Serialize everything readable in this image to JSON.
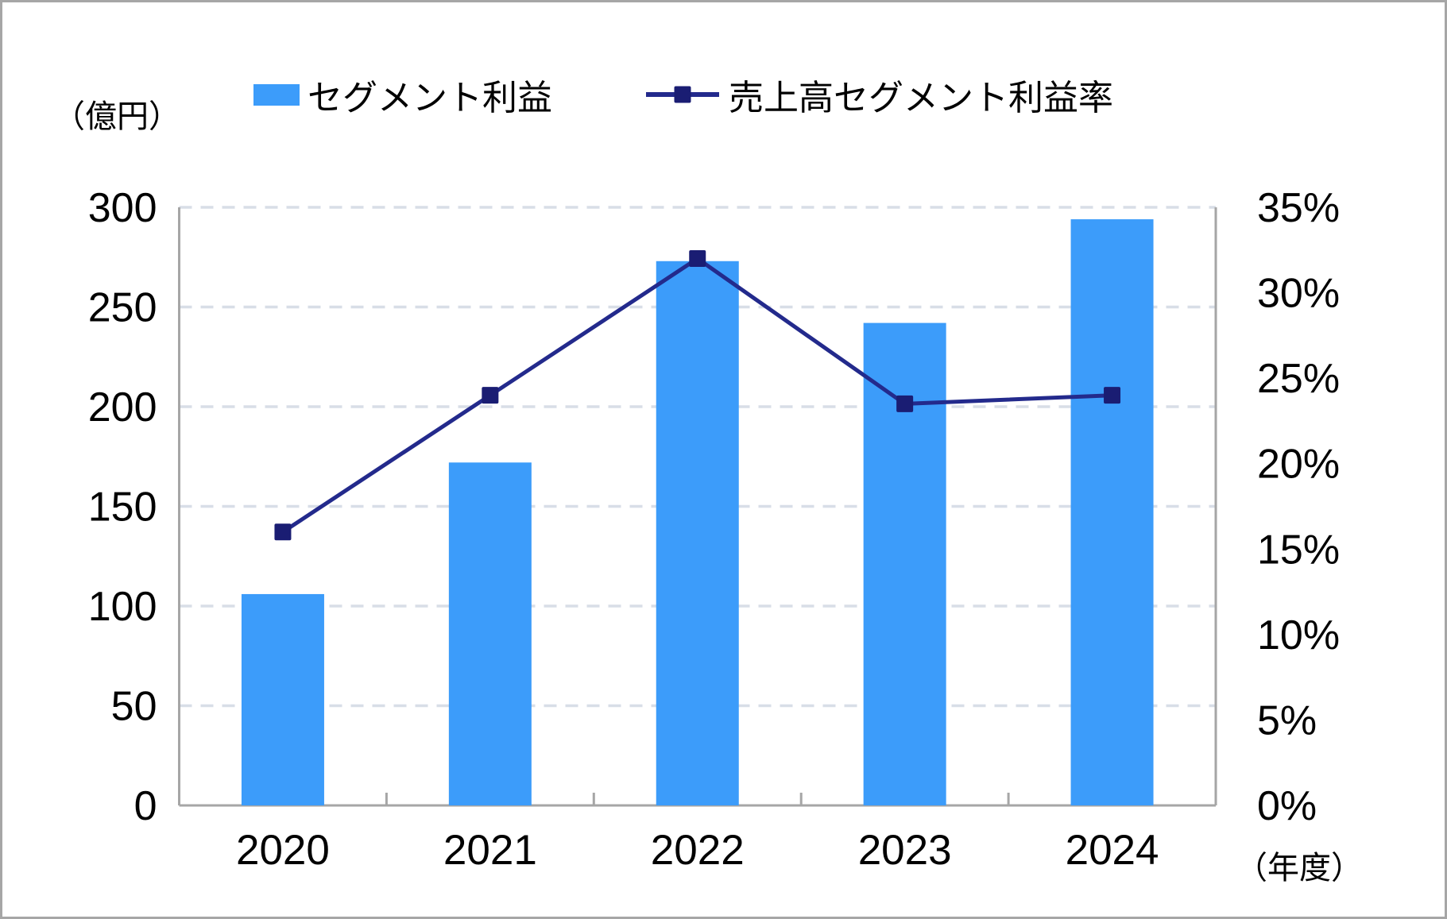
{
  "legend": {
    "bar_label": "セグメント利益",
    "line_label": "売上高セグメント利益率"
  },
  "chart_data": {
    "type": "bar+line combo",
    "categories": [
      "2020",
      "2021",
      "2022",
      "2023",
      "2024"
    ],
    "series": [
      {
        "name": "セグメント利益",
        "type": "bar",
        "axis": "left",
        "values": [
          106,
          172,
          273,
          242,
          294
        ],
        "color": "#3C9CFA"
      },
      {
        "name": "売上高セグメント利益率",
        "type": "line",
        "axis": "right",
        "values": [
          16,
          24,
          32,
          23.5,
          24
        ],
        "suffix": "%",
        "color": "#232A8C",
        "marker": "square",
        "marker_color": "#1A1D73"
      }
    ],
    "left_axis": {
      "min": 0,
      "max": 300,
      "step": 50,
      "unit_label": "（億円）",
      "ticks": [
        "0",
        "50",
        "100",
        "150",
        "200",
        "250",
        "300"
      ]
    },
    "right_axis": {
      "min": 0,
      "max": 35,
      "step": 5,
      "ticks": [
        "0%",
        "5%",
        "10%",
        "15%",
        "20%",
        "25%",
        "30%",
        "35%"
      ]
    },
    "x_axis_unit_label": "（年度）",
    "grid": true,
    "gridline_style": "dashed",
    "legend_position": "top"
  },
  "colors": {
    "grid": "#D8DEE7",
    "axis": "#A6A6A6",
    "border": "#A6A6A6",
    "text": "#000000",
    "background": "#FFFFFF"
  }
}
